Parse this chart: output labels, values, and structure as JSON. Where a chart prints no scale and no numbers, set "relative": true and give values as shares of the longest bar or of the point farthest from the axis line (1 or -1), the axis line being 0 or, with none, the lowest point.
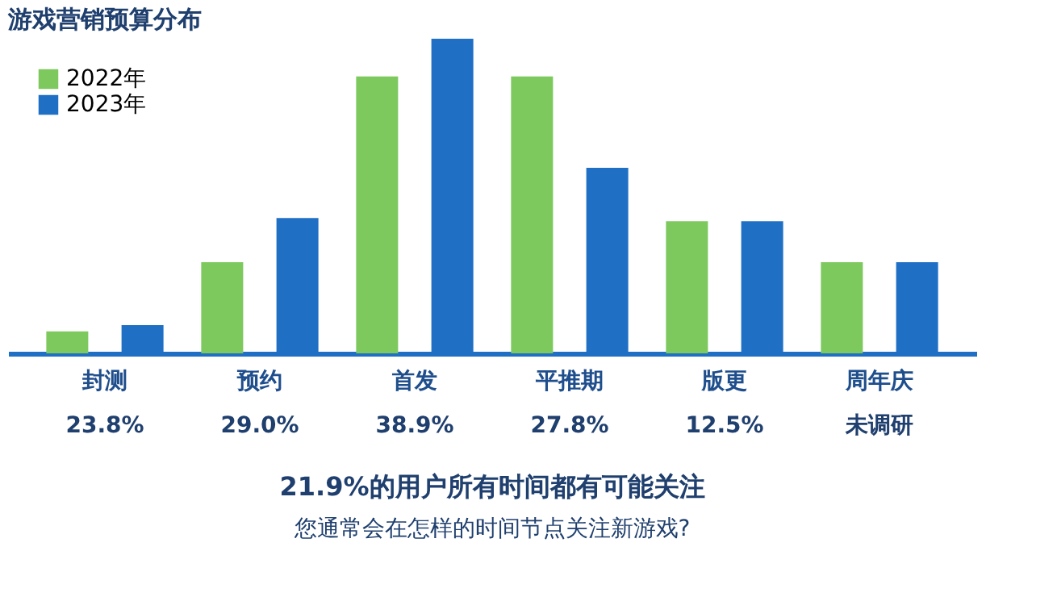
{
  "chart_data": {
    "type": "bar",
    "title": "游戏营销预算分布",
    "relative": true,
    "legend": "top left",
    "grid": false,
    "categories": [
      "封测",
      "预约",
      "首发",
      "平推期",
      "版更",
      "周年庆"
    ],
    "series": [
      {
        "name": "2022年",
        "color": "#7dc95e",
        "values": [
          0.07,
          0.29,
          0.88,
          0.88,
          0.42,
          0.29
        ]
      },
      {
        "name": "2023年",
        "color": "#1f6fc5",
        "values": [
          0.09,
          0.43,
          1,
          0.59,
          0.42,
          0.29
        ]
      }
    ],
    "annotations": [
      "23.8%",
      "29.0%",
      "38.9%",
      "27.8%",
      "12.5%",
      "未调研",
      "21.9%的用户所有时间都有可能关注",
      "您通常会在怎样的时间节点关注新游戏?"
    ]
  }
}
